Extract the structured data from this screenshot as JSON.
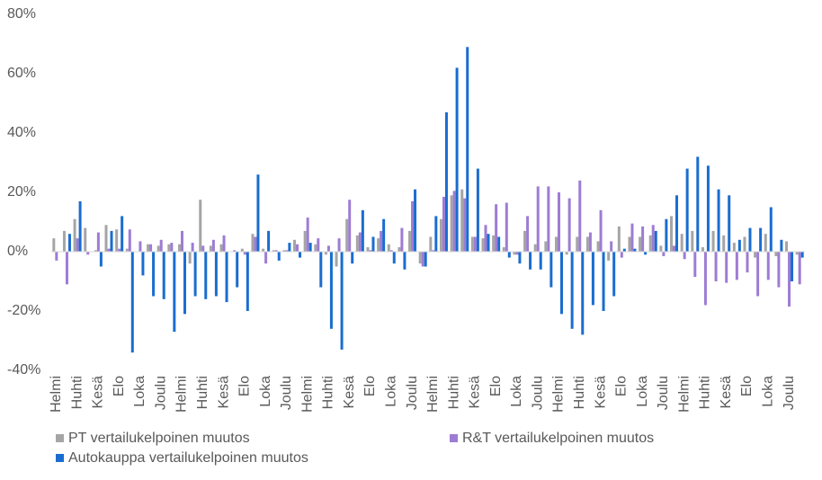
{
  "chart_data": {
    "type": "bar",
    "categories": [
      "Helmi",
      null,
      "Huhti",
      null,
      "Kesä",
      null,
      "Elo",
      null,
      "Loka",
      null,
      "Joulu",
      null,
      "Helmi",
      null,
      "Huhti",
      null,
      "Kesä",
      null,
      "Elo",
      null,
      "Loka",
      null,
      "Joulu",
      null,
      "Helmi",
      null,
      "Huhti",
      null,
      "Kesä",
      null,
      "Elo",
      null,
      "Loka",
      null,
      "Joulu",
      null,
      "Helmi",
      null,
      "Huhti",
      null,
      "Kesä",
      null,
      "Elo",
      null,
      "Loka",
      null,
      "Joulu",
      null,
      "Helmi",
      null,
      "Huhti",
      null,
      "Kesä",
      null,
      "Elo",
      null,
      "Loka",
      null,
      "Joulu",
      null,
      "Helmi",
      null,
      "Huhti",
      null,
      "Kesä",
      null,
      "Elo",
      null,
      "Loka",
      null,
      "Joulu",
      null
    ],
    "series": [
      {
        "name": "PT vertailukelpoinen muutos",
        "color": "#a5a5a5",
        "values": [
          4.5,
          7,
          11,
          8,
          0.5,
          9,
          7.5,
          1,
          0,
          2.5,
          2,
          2.5,
          2.5,
          -4,
          17.5,
          2,
          2.5,
          0,
          1,
          6,
          1,
          0.5,
          0.5,
          4,
          7,
          2.5,
          -1,
          -5,
          11,
          5.5,
          1.5,
          4.5,
          2.5,
          1.5,
          7,
          -4,
          5,
          11,
          19,
          21,
          5,
          4.5,
          5.5,
          1.5,
          -1,
          7,
          2.5,
          3.5,
          5,
          -1,
          5,
          5,
          3.5,
          -3,
          8.5,
          5,
          5,
          5.5,
          2,
          12,
          6,
          7,
          1.5,
          7,
          5.5,
          3,
          5,
          -2,
          6,
          -1.5,
          3.5,
          -1
        ]
      },
      {
        "name": "R&T vertailukelpoinen muutos",
        "color": "#9e7cd4",
        "values": [
          -3,
          -11,
          4.5,
          -1,
          6.5,
          1,
          1,
          7.5,
          3.5,
          2.5,
          4,
          3,
          7,
          3,
          2,
          4,
          5.5,
          0.5,
          -1,
          5,
          -4,
          0.5,
          0.5,
          2.5,
          11.5,
          4.5,
          2,
          4.5,
          17.5,
          6.5,
          0.5,
          7,
          0.5,
          8,
          17,
          -5,
          0.5,
          18.5,
          20.5,
          18,
          5,
          9,
          16,
          16.5,
          -1,
          12,
          22,
          22,
          20,
          18,
          24,
          6.5,
          14,
          3.5,
          -2,
          9.5,
          8.5,
          9,
          -1.5,
          2,
          -2.5,
          -8.5,
          -18,
          -10,
          -10.5,
          -9.5,
          -7,
          -15,
          -9.5,
          -12,
          -18.5,
          -11
        ]
      },
      {
        "name": "Autokauppa vertailukelpoinen muutos",
        "color": "#1a6dd0",
        "values": [
          0,
          6,
          17,
          0,
          -5,
          7,
          12,
          -34,
          -8,
          -15,
          -16,
          -27,
          -21,
          -15,
          -16,
          -15,
          -17,
          -12,
          -20,
          26,
          7,
          -3,
          3,
          -2,
          3,
          -12,
          -26,
          -33,
          -4,
          14,
          5,
          11,
          -4,
          -6,
          21,
          -5,
          12,
          47,
          62,
          69,
          28,
          6,
          5,
          -2,
          -4,
          -6,
          -6,
          -12,
          -21,
          -26,
          -28,
          -18,
          -20,
          -15,
          1,
          1,
          -1,
          7,
          11,
          19,
          28,
          32,
          29,
          21,
          19,
          4,
          8,
          8,
          15,
          4,
          -10,
          -2
        ]
      }
    ],
    "ylim": [
      -40,
      80
    ],
    "yticks": [
      {
        "value": -40,
        "label": "-40%"
      },
      {
        "value": -20,
        "label": "-20%"
      },
      {
        "value": 0,
        "label": "0%"
      },
      {
        "value": 20,
        "label": "20%"
      },
      {
        "value": 40,
        "label": "40%"
      },
      {
        "value": 60,
        "label": "60%"
      },
      {
        "value": 80,
        "label": "80%"
      }
    ],
    "grid": false
  }
}
